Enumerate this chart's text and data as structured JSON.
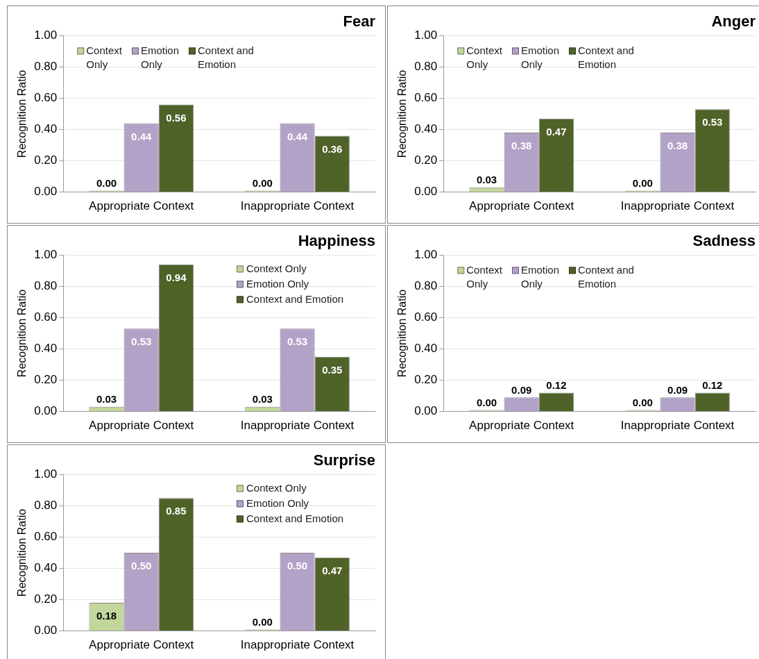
{
  "chart_data": [
    {
      "type": "bar",
      "title": "Fear",
      "ylabel": "Recognition Ratio",
      "categories": [
        "Appropriate Context",
        "Inappropriate Context"
      ],
      "ylim": [
        0,
        1
      ],
      "yticks": [
        {
          "value": 0,
          "label": "0.00"
        },
        {
          "value": 0.2,
          "label": "0.20"
        },
        {
          "value": 0.4,
          "label": "0.40"
        },
        {
          "value": 0.6,
          "label": "0.60"
        },
        {
          "value": 0.8,
          "label": "0.80"
        },
        {
          "value": 1,
          "label": "1.00"
        }
      ],
      "grid": "y",
      "legend": "top",
      "series": [
        {
          "name": "Context Only",
          "color": "#c3d69b",
          "values": [
            0,
            0
          ],
          "value_labels": [
            "0.00",
            "0.00"
          ]
        },
        {
          "name": "Emotion Only",
          "color": "#b3a2c7",
          "values": [
            0.44,
            0.44
          ],
          "value_labels": [
            "0.44",
            "0.44"
          ]
        },
        {
          "name": "Context and Emotion",
          "color": "#4f6228",
          "values": [
            0.56,
            0.36
          ],
          "value_labels": [
            "0.56",
            "0.36"
          ]
        }
      ]
    },
    {
      "type": "bar",
      "title": "Anger",
      "ylabel": "Recognition Ratio",
      "categories": [
        "Appropriate Context",
        "Inappropriate Context"
      ],
      "ylim": [
        0,
        1
      ],
      "yticks": [
        {
          "value": 0,
          "label": "0.00"
        },
        {
          "value": 0.2,
          "label": "0.20"
        },
        {
          "value": 0.4,
          "label": "0.40"
        },
        {
          "value": 0.6,
          "label": "0.60"
        },
        {
          "value": 0.8,
          "label": "0.80"
        },
        {
          "value": 1,
          "label": "1.00"
        }
      ],
      "grid": "y",
      "legend": "top",
      "series": [
        {
          "name": "Context Only",
          "color": "#c3d69b",
          "values": [
            0.03,
            0
          ],
          "value_labels": [
            "0.03",
            "0.00"
          ]
        },
        {
          "name": "Emotion Only",
          "color": "#b3a2c7",
          "values": [
            0.38,
            0.38
          ],
          "value_labels": [
            "0.38",
            "0.38"
          ]
        },
        {
          "name": "Context and Emotion",
          "color": "#4f6228",
          "values": [
            0.47,
            0.53
          ],
          "value_labels": [
            "0.47",
            "0.53"
          ]
        }
      ]
    },
    {
      "type": "bar",
      "title": "Happiness",
      "ylabel": "Recognition Ratio",
      "categories": [
        "Appropriate Context",
        "Inappropriate Context"
      ],
      "ylim": [
        0,
        1
      ],
      "yticks": [
        {
          "value": 0,
          "label": "0.00"
        },
        {
          "value": 0.2,
          "label": "0.20"
        },
        {
          "value": 0.4,
          "label": "0.40"
        },
        {
          "value": 0.6,
          "label": "0.60"
        },
        {
          "value": 0.8,
          "label": "0.80"
        },
        {
          "value": 1,
          "label": "1.00"
        }
      ],
      "grid": "y",
      "legend": "top right",
      "series": [
        {
          "name": "Context Only",
          "color": "#c3d69b",
          "values": [
            0.03,
            0.03
          ],
          "value_labels": [
            "0.03",
            "0.03"
          ]
        },
        {
          "name": "Emotion Only",
          "color": "#b3a2c7",
          "values": [
            0.53,
            0.53
          ],
          "value_labels": [
            "0.53",
            "0.53"
          ]
        },
        {
          "name": "Context and Emotion",
          "color": "#4f6228",
          "values": [
            0.94,
            0.35
          ],
          "value_labels": [
            "0.94",
            "0.35"
          ]
        }
      ]
    },
    {
      "type": "bar",
      "title": "Sadness",
      "ylabel": "Recognition Ratio",
      "categories": [
        "Appropriate Context",
        "Inappropriate Context"
      ],
      "ylim": [
        0,
        1
      ],
      "yticks": [
        {
          "value": 0,
          "label": "0.00"
        },
        {
          "value": 0.2,
          "label": "0.20"
        },
        {
          "value": 0.4,
          "label": "0.40"
        },
        {
          "value": 0.6,
          "label": "0.60"
        },
        {
          "value": 0.8,
          "label": "0.80"
        },
        {
          "value": 1,
          "label": "1.00"
        }
      ],
      "grid": "y",
      "legend": "top",
      "series": [
        {
          "name": "Context Only",
          "color": "#c3d69b",
          "values": [
            0,
            0
          ],
          "value_labels": [
            "0.00",
            "0.00"
          ]
        },
        {
          "name": "Emotion Only",
          "color": "#b3a2c7",
          "values": [
            0.09,
            0.09
          ],
          "value_labels": [
            "0.09",
            "0.09"
          ]
        },
        {
          "name": "Context and Emotion",
          "color": "#4f6228",
          "values": [
            0.12,
            0.12
          ],
          "value_labels": [
            "0.12",
            "0.12"
          ]
        }
      ]
    },
    {
      "type": "bar",
      "title": "Surprise",
      "ylabel": "Recognition Ratio",
      "categories": [
        "Appropriate Context",
        "Inappropriate Context"
      ],
      "ylim": [
        0,
        1
      ],
      "yticks": [
        {
          "value": 0,
          "label": "0.00"
        },
        {
          "value": 0.2,
          "label": "0.20"
        },
        {
          "value": 0.4,
          "label": "0.40"
        },
        {
          "value": 0.6,
          "label": "0.60"
        },
        {
          "value": 0.8,
          "label": "0.80"
        },
        {
          "value": 1,
          "label": "1.00"
        }
      ],
      "grid": "y",
      "legend": "top right",
      "series": [
        {
          "name": "Context Only",
          "color": "#c3d69b",
          "values": [
            0.18,
            0
          ],
          "value_labels": [
            "0.18",
            "0.00"
          ]
        },
        {
          "name": "Emotion Only",
          "color": "#b3a2c7",
          "values": [
            0.5,
            0.5
          ],
          "value_labels": [
            "0.50",
            "0.50"
          ]
        },
        {
          "name": "Context and Emotion",
          "color": "#4f6228",
          "values": [
            0.85,
            0.47
          ],
          "value_labels": [
            "0.85",
            "0.47"
          ]
        }
      ]
    }
  ]
}
